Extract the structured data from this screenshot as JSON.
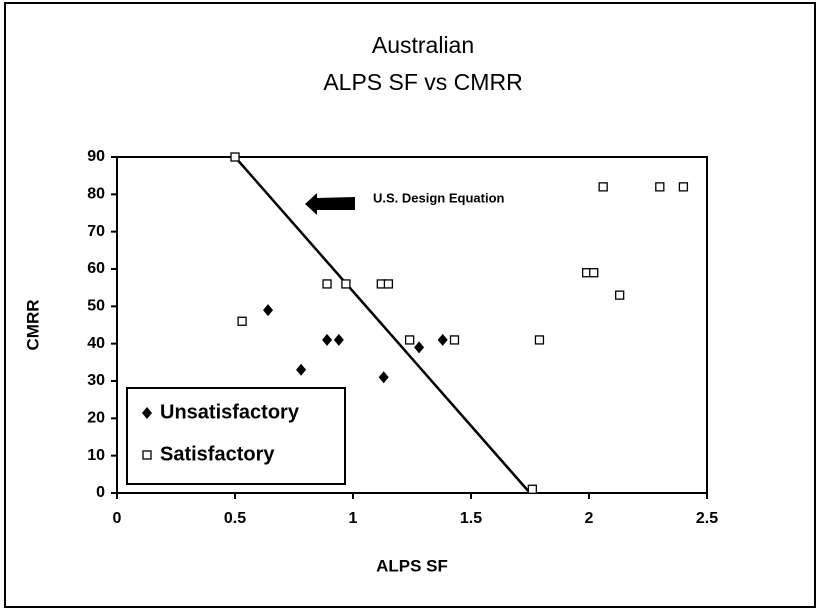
{
  "chart_data": {
    "type": "scatter",
    "title": [
      "Australian",
      "ALPS SF vs CMRR"
    ],
    "x_label": "ALPS SF",
    "y_label": "CMRR",
    "xlim": [
      0,
      2.5
    ],
    "ylim": [
      0,
      90
    ],
    "xticks": [
      0,
      0.5,
      1,
      1.5,
      2,
      2.5
    ],
    "yticks": [
      0,
      10,
      20,
      30,
      40,
      50,
      60,
      70,
      80,
      90
    ],
    "legend": "lower left",
    "series": [
      {
        "name": "Unsatisfactory",
        "marker": "diamond",
        "color": "#000000",
        "x": [
          0.64,
          0.78,
          0.89,
          0.94,
          1.13,
          1.28,
          1.38
        ],
        "values": [
          49,
          33,
          41,
          41,
          31,
          39,
          41
        ]
      },
      {
        "name": "Satisfactory",
        "marker": "square",
        "color": "#000000",
        "x": [
          0.5,
          0.53,
          0.89,
          0.97,
          1.12,
          1.15,
          1.24,
          1.43,
          1.76,
          1.79,
          1.99,
          2.02,
          2.13,
          2.06,
          2.3,
          2.4
        ],
        "values": [
          90,
          46,
          56,
          56,
          56,
          56,
          41,
          41,
          1,
          41,
          59,
          59,
          53,
          82,
          82,
          82
        ]
      }
    ],
    "lines": [
      {
        "x": [
          0.5,
          1.75
        ],
        "values": [
          90,
          0
        ]
      }
    ],
    "annotations": [
      {
        "text": "U.S. Design Equation"
      }
    ]
  }
}
